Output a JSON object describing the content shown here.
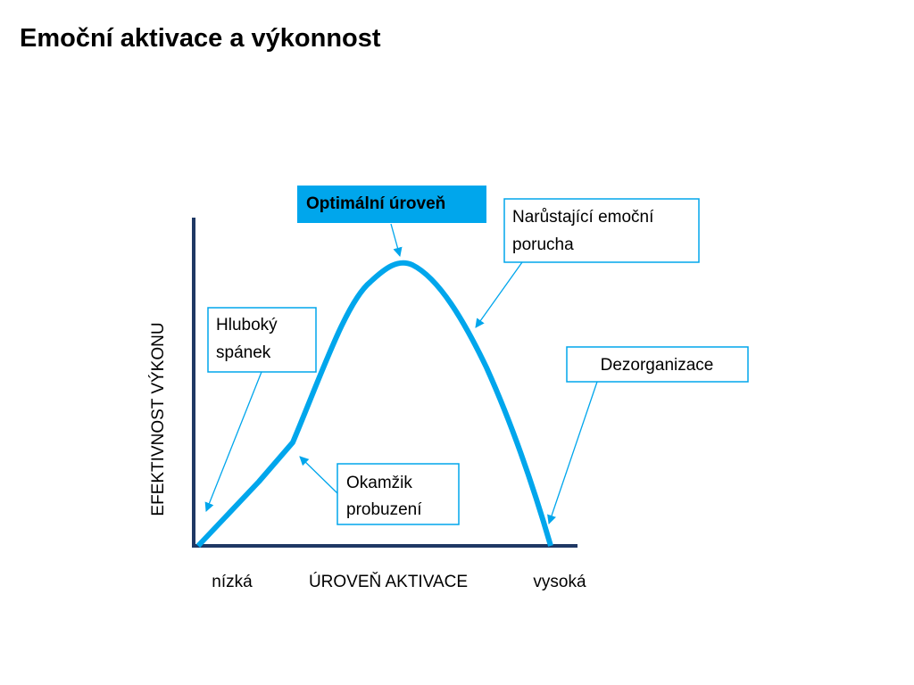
{
  "title": "Emoční aktivace a výkonnost",
  "y_axis_label": "EFEKTIVNOST VÝKONU",
  "x_axis": {
    "low": "nízká",
    "label": "ÚROVEŇ AKTIVACE",
    "high": "vysoká"
  },
  "callouts": [
    {
      "lines": [
        "Optimální úroveň"
      ]
    },
    {
      "lines": [
        "Narůstající emoční",
        "porucha"
      ]
    },
    {
      "lines": [
        "Hluboký",
        "spánek"
      ]
    },
    {
      "lines": [
        "Dezorganizace"
      ]
    },
    {
      "lines": [
        "Okamžik",
        "probuzení"
      ]
    }
  ]
}
